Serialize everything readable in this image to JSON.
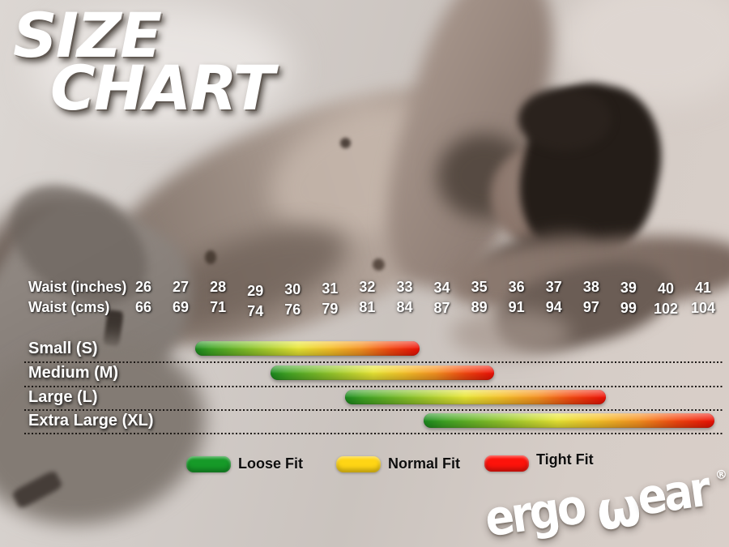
{
  "title": {
    "line1": "SIZE",
    "line2": "CHART"
  },
  "logo": {
    "part1": "ergo",
    "w": "ω",
    "part2": "ear",
    "registered": "®"
  },
  "chart_data": {
    "type": "bar",
    "subtype": "horizontal_range",
    "title": "SIZE CHART",
    "axis": {
      "rows": [
        {
          "label": "Waist (inches)",
          "values": [
            26,
            27,
            28,
            29,
            30,
            31,
            32,
            33,
            34,
            35,
            36,
            37,
            38,
            39,
            40,
            41
          ]
        },
        {
          "label": "Waist (cms)",
          "values": [
            66,
            69,
            71,
            74,
            76,
            79,
            81,
            84,
            87,
            89,
            91,
            94,
            97,
            99,
            102,
            104
          ]
        }
      ],
      "range_inches": [
        26,
        41
      ],
      "grid": false
    },
    "categories": [
      "Small (S)",
      "Medium (M)",
      "Large (L)",
      "Extra Large (XL)"
    ],
    "series": [
      {
        "name": "Small (S)",
        "waist_inches": [
          27.4,
          33.4
        ]
      },
      {
        "name": "Medium (M)",
        "waist_inches": [
          29.4,
          35.4
        ]
      },
      {
        "name": "Large (L)",
        "waist_inches": [
          31.4,
          38.4
        ]
      },
      {
        "name": "Extra Large (XL)",
        "waist_inches": [
          33.5,
          41.3
        ]
      }
    ],
    "legend": [
      {
        "label": "Loose Fit",
        "color": "#169a28"
      },
      {
        "label": "Normal Fit",
        "color": "#ffd515"
      },
      {
        "label": "Tight Fit",
        "color": "#fd130b"
      }
    ],
    "legend_position": "bottom",
    "bar_gradient": [
      "#1b8a1d",
      "#3fa423",
      "#8fc52a",
      "#e9e634",
      "#f6c128",
      "#f69120",
      "#f4470f",
      "#ee0f05"
    ],
    "gradient_meaning": "green = Loose Fit, yellow = Normal Fit, red = Tight Fit across each size's waist range"
  }
}
